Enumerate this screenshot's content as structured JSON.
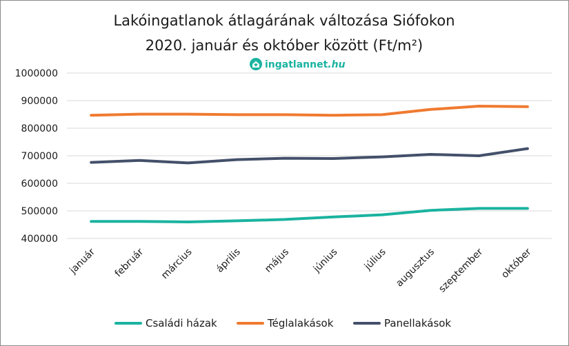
{
  "chart_data": {
    "type": "line",
    "title_line1": "Lakóingatlanok átlagárának változása Siófokon",
    "title_line2": "2020. január és október között (Ft/m²)",
    "categories": [
      "január",
      "február",
      "március",
      "április",
      "május",
      "június",
      "július",
      "augusztus",
      "szeptember",
      "október"
    ],
    "ylim": [
      400000,
      1000000
    ],
    "yticks": [
      400000,
      500000,
      600000,
      700000,
      800000,
      900000,
      1000000
    ],
    "grid": true,
    "legend_position": "bottom",
    "series": [
      {
        "name": "Családi házak",
        "color": "#1ab3a0",
        "values": [
          462000,
          462000,
          460000,
          464000,
          469000,
          478000,
          486000,
          502000,
          509000,
          509000
        ]
      },
      {
        "name": "Téglalakások",
        "color": "#f07a30",
        "values": [
          847000,
          851000,
          851000,
          849000,
          849000,
          847000,
          849000,
          868000,
          880000,
          878000
        ]
      },
      {
        "name": "Panellakások",
        "color": "#44506a",
        "values": [
          676000,
          683000,
          674000,
          686000,
          691000,
          690000,
          696000,
          705000,
          700000,
          726000
        ]
      }
    ]
  },
  "logo": {
    "text_main": "ingatlannet",
    "text_suffix": ".hu",
    "icon": "house-heart-icon",
    "color": "#1ab3a0"
  }
}
